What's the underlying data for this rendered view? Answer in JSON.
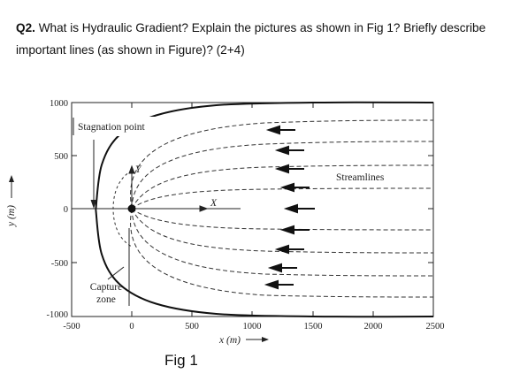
{
  "question": {
    "number": "Q2.",
    "text": "What is Hydraulic Gradient? Explain the pictures as shown in Fig 1? Briefly describe important lines (as shown in Figure)? (2+4)"
  },
  "figure": {
    "caption": "Fig 1",
    "annotations": {
      "stagnation_point": "Stagnation point",
      "streamlines": "Streamlines",
      "capture_zone_line1": "Capture",
      "capture_zone_line2": "zone",
      "x_marker": "X",
      "y_marker": "Y"
    }
  },
  "chart_data": {
    "type": "line",
    "xlabel": "x (m)",
    "ylabel": "y (m)",
    "xlim": [
      -500,
      2500
    ],
    "ylim": [
      -1000,
      1000
    ],
    "x_ticks": [
      "-500",
      "0",
      "500",
      "1000",
      "1500",
      "2000",
      "2500"
    ],
    "y_ticks": [
      "1000",
      "500",
      "0",
      "-500",
      "-1000"
    ],
    "stagnation_point": [
      -300,
      0
    ],
    "well_location": [
      0,
      0
    ],
    "series": [
      {
        "x": [
          -300,
          -250,
          -100,
          200,
          700,
          1500,
          2500
        ],
        "y": [
          0,
          420,
          700,
          880,
          975,
          1000,
          1000
        ]
      },
      {
        "x": [
          -300,
          -250,
          -100,
          200,
          700,
          1500,
          2500
        ],
        "y": [
          0,
          -420,
          -700,
          -880,
          -975,
          -1000,
          -1000
        ]
      }
    ]
  }
}
